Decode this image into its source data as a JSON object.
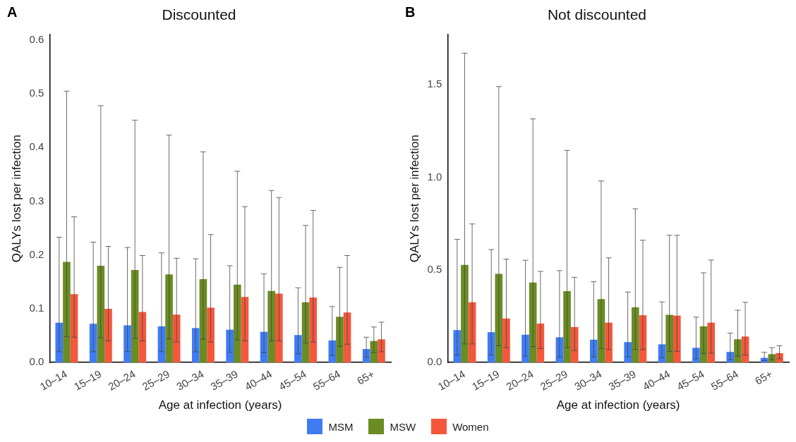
{
  "chart_data": [
    {
      "type": "bar",
      "title": "Discounted",
      "annotations": [
        "A"
      ],
      "xlabel": "Age at infection (years)",
      "ylabel": "QALYs lost per infection",
      "categories": [
        "10–14",
        "15–19",
        "20–24",
        "25–29",
        "30–34",
        "35–39",
        "40–44",
        "45–54",
        "55–64",
        "65+"
      ],
      "ylim": [
        0,
        0.61
      ],
      "yticks": [
        {
          "value": 0,
          "label": "0.0"
        },
        {
          "value": 0.1,
          "label": "0.1"
        },
        {
          "value": 0.2,
          "label": "0.2"
        },
        {
          "value": 0.3,
          "label": "0.3"
        },
        {
          "value": 0.4,
          "label": "0.4"
        },
        {
          "value": 0.5,
          "label": "0.5"
        },
        {
          "value": 0.6,
          "label": "0.6"
        }
      ],
      "series": [
        {
          "color": "#3f7cf4",
          "values": [
            0.074,
            0.072,
            0.069,
            0.067,
            0.064,
            0.061,
            0.057,
            0.051,
            0.041,
            0.025
          ],
          "errors": [
            [
              0.02,
              0.233
            ],
            [
              0.02,
              0.224
            ],
            [
              0.02,
              0.214
            ],
            [
              0.02,
              0.204
            ],
            [
              0.02,
              0.193
            ],
            [
              0.019,
              0.18
            ],
            [
              0.018,
              0.165
            ],
            [
              0.016,
              0.139
            ],
            [
              0.013,
              0.104
            ],
            [
              0.01,
              0.047
            ]
          ]
        },
        {
          "color": "#6a8c23",
          "values": [
            0.187,
            0.18,
            0.172,
            0.164,
            0.155,
            0.145,
            0.133,
            0.112,
            0.085,
            0.04
          ],
          "errors": [
            [
              0.048,
              0.505
            ],
            [
              0.046,
              0.478
            ],
            [
              0.045,
              0.451
            ],
            [
              0.044,
              0.423
            ],
            [
              0.043,
              0.392
            ],
            [
              0.042,
              0.356
            ],
            [
              0.04,
              0.32
            ],
            [
              0.036,
              0.255
            ],
            [
              0.03,
              0.177
            ],
            [
              0.018,
              0.066
            ]
          ]
        },
        {
          "color": "#f4573c",
          "values": [
            0.127,
            0.1,
            0.094,
            0.089,
            0.102,
            0.122,
            0.128,
            0.121,
            0.093,
            0.043
          ],
          "errors": [
            [
              0.047,
              0.271
            ],
            [
              0.04,
              0.216
            ],
            [
              0.04,
              0.199
            ],
            [
              0.038,
              0.194
            ],
            [
              0.038,
              0.238
            ],
            [
              0.04,
              0.29
            ],
            [
              0.04,
              0.307
            ],
            [
              0.038,
              0.283
            ],
            [
              0.034,
              0.199
            ],
            [
              0.02,
              0.075
            ]
          ]
        }
      ]
    },
    {
      "type": "bar",
      "title": "Not discounted",
      "annotations": [
        "B"
      ],
      "xlabel": "Age at infection (years)",
      "ylabel": "QALYs lost per infection",
      "categories": [
        "10–14",
        "15–19",
        "20–24",
        "25–29",
        "30–34",
        "35–39",
        "40–44",
        "45–54",
        "55–64",
        "65+"
      ],
      "ylim": [
        0,
        1.77
      ],
      "yticks": [
        {
          "value": 0,
          "label": "0.0"
        },
        {
          "value": 0.5,
          "label": "0.5"
        },
        {
          "value": 1,
          "label": "1.0"
        },
        {
          "value": 1.5,
          "label": "1.5"
        }
      ],
      "legend": "bottom",
      "series": [
        {
          "name": "MSM",
          "color": "#3f7cf4",
          "values": [
            0.175,
            0.163,
            0.15,
            0.136,
            0.123,
            0.11,
            0.098,
            0.079,
            0.057,
            0.025
          ],
          "errors": [
            [
              0.04,
              0.665
            ],
            [
              0.04,
              0.61
            ],
            [
              0.035,
              0.552
            ],
            [
              0.03,
              0.496
            ],
            [
              0.03,
              0.436
            ],
            [
              0.03,
              0.38
            ],
            [
              0.025,
              0.327
            ],
            [
              0.02,
              0.245
            ],
            [
              0.015,
              0.158
            ],
            [
              0.01,
              0.055
            ]
          ]
        },
        {
          "name": "MSW",
          "color": "#6a8c23",
          "values": [
            0.527,
            0.478,
            0.432,
            0.385,
            0.342,
            0.298,
            0.257,
            0.195,
            0.125,
            0.045
          ],
          "errors": [
            [
              0.1,
              1.67
            ],
            [
              0.09,
              1.49
            ],
            [
              0.085,
              1.315
            ],
            [
              0.08,
              1.145
            ],
            [
              0.075,
              0.98
            ],
            [
              0.07,
              0.83
            ],
            [
              0.06,
              0.687
            ],
            [
              0.05,
              0.484
            ],
            [
              0.035,
              0.282
            ],
            [
              0.015,
              0.08
            ]
          ]
        },
        {
          "name": "Women",
          "color": "#f4573c",
          "values": [
            0.325,
            0.238,
            0.21,
            0.191,
            0.215,
            0.255,
            0.253,
            0.215,
            0.14,
            0.05
          ],
          "errors": [
            [
              0.1,
              0.748
            ],
            [
              0.08,
              0.558
            ],
            [
              0.075,
              0.492
            ],
            [
              0.065,
              0.46
            ],
            [
              0.07,
              0.565
            ],
            [
              0.07,
              0.66
            ],
            [
              0.06,
              0.687
            ],
            [
              0.05,
              0.553
            ],
            [
              0.04,
              0.325
            ],
            [
              0.02,
              0.09
            ]
          ]
        }
      ]
    }
  ]
}
